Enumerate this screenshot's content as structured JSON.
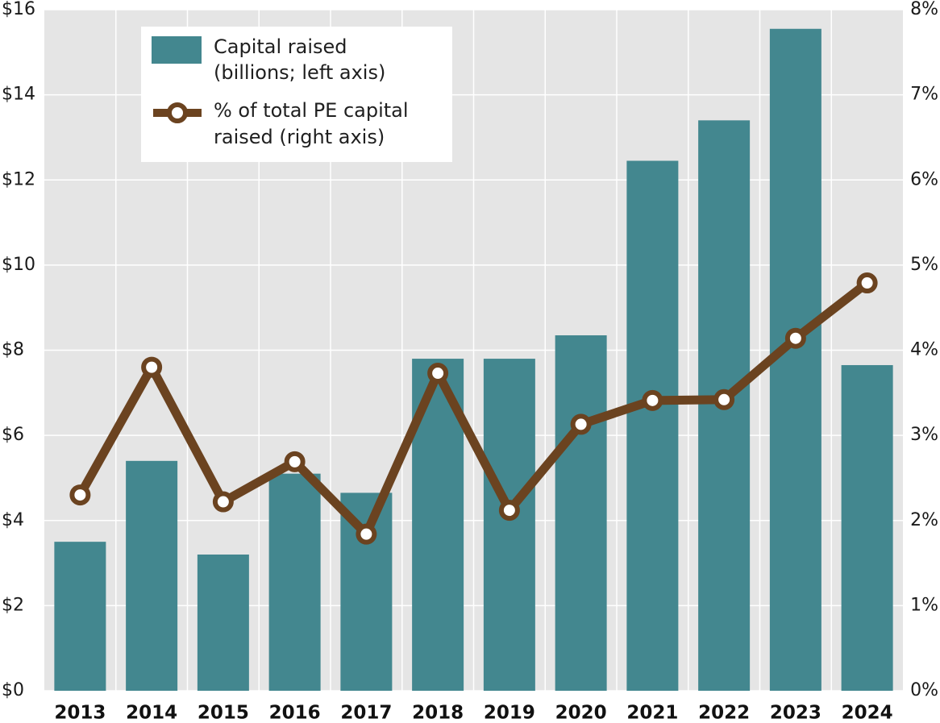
{
  "chart_data": {
    "type": "bar",
    "categories": [
      "2013",
      "2014",
      "2015",
      "2016",
      "2017",
      "2018",
      "2019",
      "2020",
      "2021",
      "2022",
      "2023",
      "2024"
    ],
    "series": [
      {
        "name": "Capital raised (billions; left axis)",
        "type": "bar",
        "axis": "left",
        "values": [
          3.5,
          5.4,
          3.2,
          5.1,
          4.65,
          7.8,
          7.8,
          8.35,
          12.45,
          13.4,
          15.55,
          7.65
        ]
      },
      {
        "name": "% of total PE capital raised (right axis)",
        "type": "line",
        "axis": "right",
        "values": [
          2.3,
          3.8,
          2.22,
          2.69,
          1.84,
          3.73,
          2.12,
          3.13,
          3.41,
          3.42,
          4.14,
          4.79
        ]
      }
    ],
    "left_axis": {
      "ylim": [
        0,
        16
      ],
      "ticks": [
        "$0",
        "$2",
        "$4",
        "$6",
        "$8",
        "$10",
        "$12",
        "$14",
        "$16"
      ]
    },
    "right_axis": {
      "ylim": [
        0,
        8
      ],
      "ticks": [
        "0%",
        "1%",
        "2%",
        "3%",
        "4%",
        "5%",
        "6%",
        "7%",
        "8%"
      ]
    },
    "grid": true,
    "legend": {
      "placement": "top-left",
      "bar_label": [
        "Capital raised",
        "(billions; left axis)"
      ],
      "line_label": [
        "% of total PE capital",
        "raised (right axis)"
      ]
    },
    "colors": {
      "bars": "#43878f",
      "line": "#6b4320",
      "marker_fill": "#ffffff",
      "plot_background": "#e5e5e5",
      "grid": "#ffffff"
    }
  }
}
